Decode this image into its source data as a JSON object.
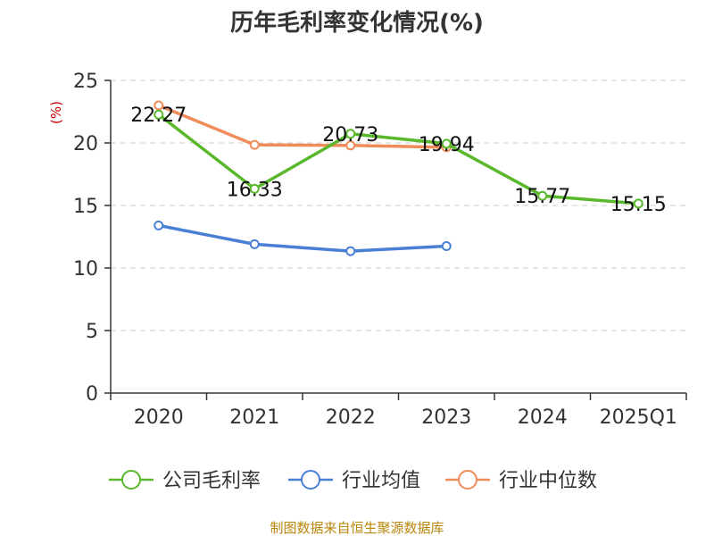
{
  "chart_data": {
    "type": "line",
    "title": "历年毛利率变化情况(%)",
    "ylabel": "(%)",
    "categories": [
      "2020",
      "2021",
      "2022",
      "2023",
      "2024",
      "2025Q1"
    ],
    "ylim": [
      0,
      25
    ],
    "yticks": [
      0,
      5,
      10,
      15,
      20,
      25
    ],
    "grid": "horizontal-dashed",
    "legend_position": "bottom",
    "series": [
      {
        "name": "公司毛利率",
        "color": "#5ab82d",
        "values": [
          22.27,
          16.33,
          20.73,
          19.94,
          15.77,
          15.15
        ],
        "labels": [
          "22.27",
          "16.33",
          "20.73",
          "19.94",
          "15.77",
          "15.15"
        ]
      },
      {
        "name": "行业均值",
        "color": "#4a7fd6",
        "values": [
          13.4,
          11.9,
          11.35,
          11.75,
          null,
          null
        ]
      },
      {
        "name": "行业中位数",
        "color": "#f08c5a",
        "values": [
          23.0,
          19.85,
          19.8,
          19.65,
          null,
          null
        ]
      }
    ]
  },
  "source_note": "制图数据来自恒生聚源数据库"
}
